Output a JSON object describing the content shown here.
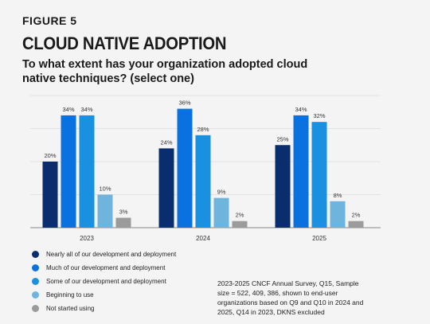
{
  "figure_label": "FIGURE 5",
  "title": "CLOUD NATIVE ADOPTION",
  "question": "To what extent has your organization adopted cloud native techniques? (select one)",
  "footnote": "2023-2025 CNCF Annual Survey, Q15, Sample size = 522, 409, 386, shown to end-user organizations based on Q9 and Q10 in 2024 and 2025, Q14 in 2023, DKNS excluded",
  "chart_data": {
    "type": "bar",
    "categories": [
      "2023",
      "2024",
      "2025"
    ],
    "series": [
      {
        "name": "Nearly all of our development and deployment",
        "color": "#0a2d6e",
        "values": [
          20,
          24,
          25
        ]
      },
      {
        "name": "Much of our development and deployment",
        "color": "#0a72e0",
        "values": [
          34,
          36,
          34
        ]
      },
      {
        "name": "Some of our development and deployment",
        "color": "#1a90e0",
        "values": [
          34,
          28,
          32
        ]
      },
      {
        "name": "Beginning to use",
        "color": "#6fb4dc",
        "values": [
          10,
          9,
          8
        ]
      },
      {
        "name": "Not started using",
        "color": "#9b9b9b",
        "values": [
          3,
          2,
          2
        ]
      }
    ],
    "value_suffix": "%",
    "ylim": [
      0,
      40
    ],
    "grid": true,
    "legend_position": "bottom-left",
    "title": "",
    "xlabel": "",
    "ylabel": ""
  }
}
